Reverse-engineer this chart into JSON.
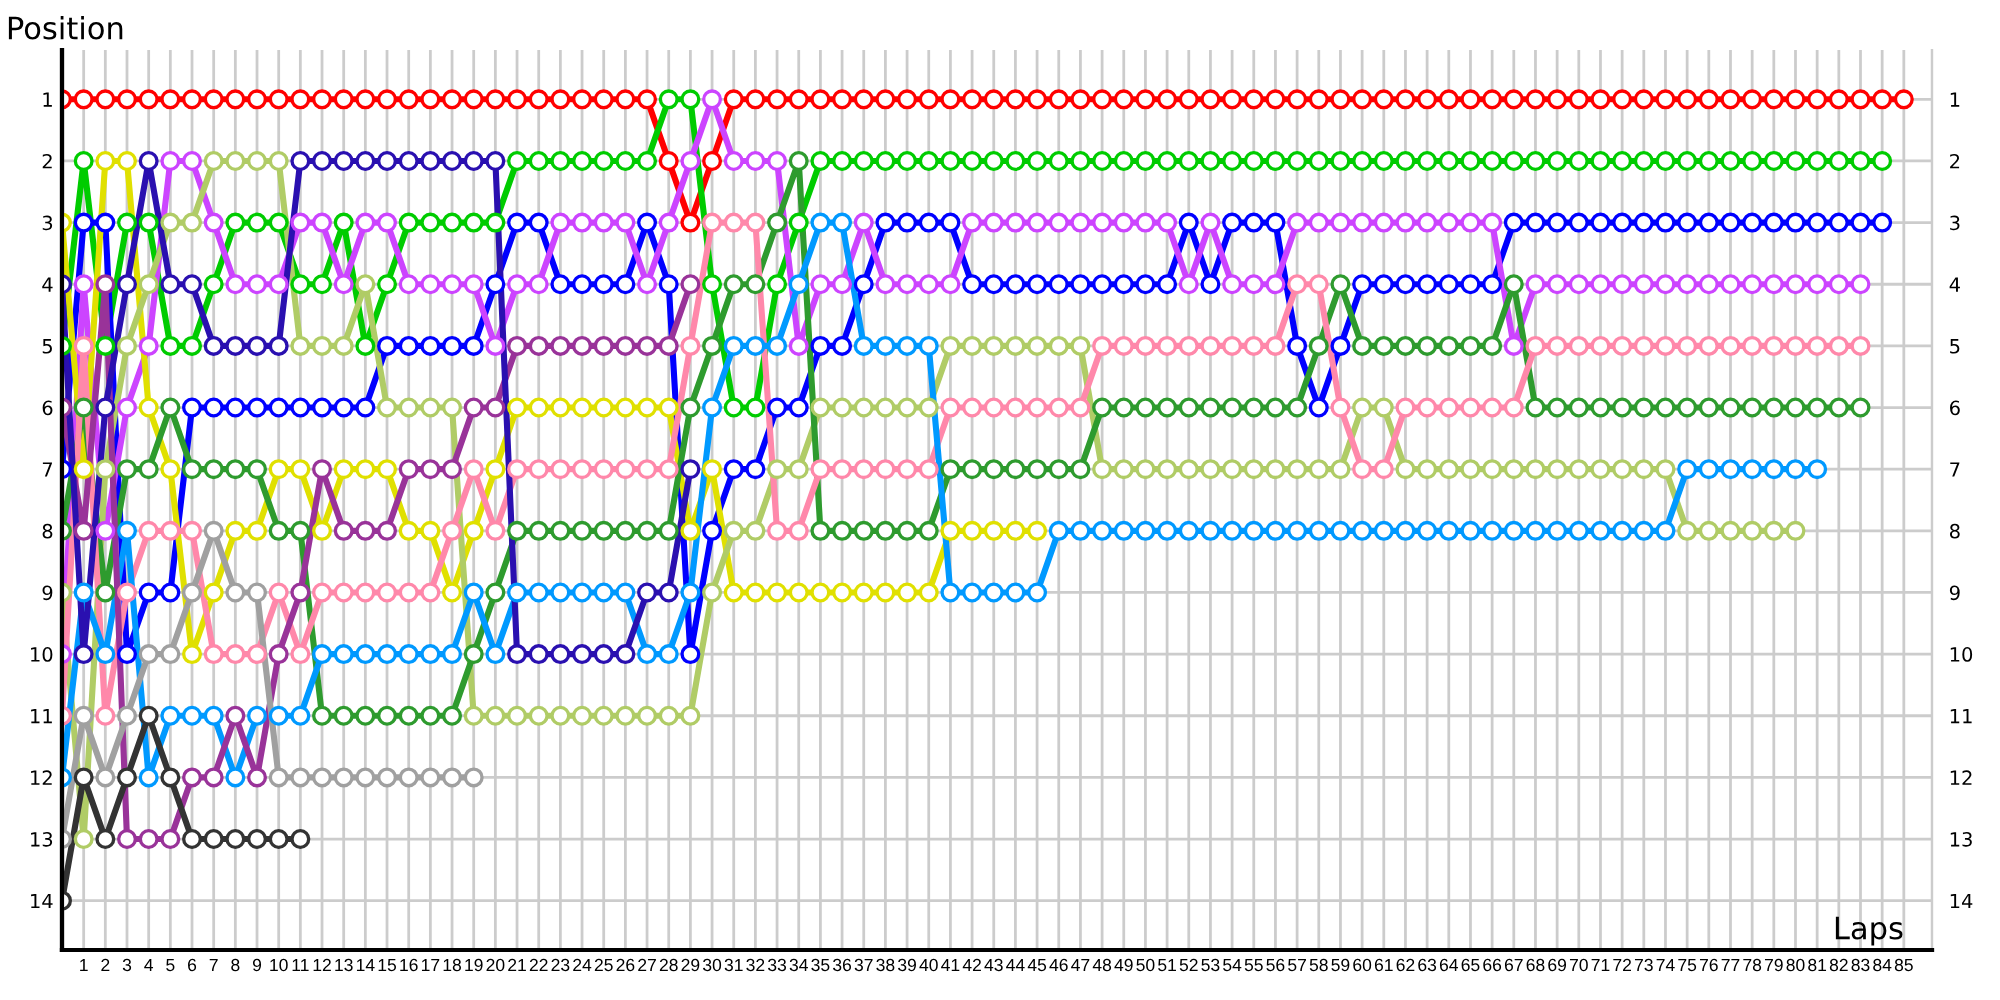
{
  "chart_data": {
    "type": "line",
    "ylabel": "Position",
    "xlabel": "Laps",
    "categories": [
      null,
      "1",
      "2",
      "3",
      "4",
      "5",
      "6",
      "7",
      "8",
      "9",
      "10",
      "11",
      "12",
      "13",
      "14",
      "15",
      "16",
      "17",
      "18",
      "19",
      "20",
      "21",
      "22",
      "23",
      "24",
      "25",
      "26",
      "27",
      "28",
      "29",
      "30",
      "31",
      "32",
      "33",
      "34",
      "35",
      "36",
      "37",
      "38",
      "39",
      "40",
      "41",
      "42",
      "43",
      "44",
      "45",
      "46",
      "47",
      "48",
      "49",
      "50",
      "51",
      "52",
      "53",
      "54",
      "55",
      "56",
      "57",
      "58",
      "59",
      "60",
      "61",
      "62",
      "63",
      "64",
      "65",
      "66",
      "67",
      "68",
      "69",
      "70",
      "71",
      "72",
      "73",
      "74",
      "75",
      "76",
      "77",
      "78",
      "79",
      "80",
      "81",
      "82",
      "83",
      "84",
      "85"
    ],
    "ylim": [
      14.8,
      0.2
    ],
    "yticks": [
      1,
      2,
      3,
      4,
      5,
      6,
      7,
      8,
      9,
      10,
      11,
      12,
      13,
      14
    ],
    "y2lim": [
      14.8,
      0.2
    ],
    "y2ticks": [
      1,
      2,
      3,
      4,
      5,
      6,
      7,
      8,
      9,
      10,
      11,
      12,
      13,
      14
    ],
    "grid": true,
    "marker": "circle",
    "line_style": "solid",
    "series": [
      {
        "color": "#ff0000",
        "values": [
          1,
          1,
          1,
          1,
          1,
          1,
          1,
          1,
          1,
          1,
          1,
          1,
          1,
          1,
          1,
          1,
          1,
          1,
          1,
          1,
          1,
          1,
          1,
          1,
          1,
          1,
          1,
          1,
          2,
          3,
          2,
          1,
          1,
          1,
          1,
          1,
          1,
          1,
          1,
          1,
          1,
          1,
          1,
          1,
          1,
          1,
          1,
          1,
          1,
          1,
          1,
          1,
          1,
          1,
          1,
          1,
          1,
          1,
          1,
          1,
          1,
          1,
          1,
          1,
          1,
          1,
          1,
          1,
          1,
          1,
          1,
          1,
          1,
          1,
          1,
          1,
          1,
          1,
          1,
          1,
          1,
          1,
          1,
          1,
          1,
          1
        ]
      },
      {
        "color": "#00cc00",
        "values": [
          5,
          2,
          5,
          3,
          3,
          5,
          5,
          4,
          3,
          3,
          3,
          4,
          4,
          3,
          5,
          4,
          3,
          3,
          3,
          3,
          3,
          2,
          2,
          2,
          2,
          2,
          2,
          2,
          1,
          1,
          4,
          6,
          6,
          4,
          3,
          2,
          2,
          2,
          2,
          2,
          2,
          2,
          2,
          2,
          2,
          2,
          2,
          2,
          2,
          2,
          2,
          2,
          2,
          2,
          2,
          2,
          2,
          2,
          2,
          2,
          2,
          2,
          2,
          2,
          2,
          2,
          2,
          2,
          2,
          2,
          2,
          2,
          2,
          2,
          2,
          2,
          2,
          2,
          2,
          2,
          2,
          2,
          2,
          2,
          2,
          null
        ]
      },
      {
        "color": "#0000ff",
        "values": [
          7,
          3,
          3,
          10,
          9,
          9,
          6,
          6,
          6,
          6,
          6,
          6,
          6,
          6,
          6,
          5,
          5,
          5,
          5,
          5,
          4,
          3,
          3,
          4,
          4,
          4,
          4,
          3,
          4,
          10,
          8,
          7,
          7,
          6,
          6,
          5,
          5,
          4,
          3,
          3,
          3,
          3,
          4,
          4,
          4,
          4,
          4,
          4,
          4,
          4,
          4,
          4,
          3,
          4,
          3,
          3,
          3,
          5,
          6,
          5,
          4,
          4,
          4,
          4,
          4,
          4,
          4,
          3,
          3,
          3,
          3,
          3,
          3,
          3,
          3,
          3,
          3,
          3,
          3,
          3,
          3,
          3,
          3,
          3,
          3,
          null
        ]
      },
      {
        "color": "#cc44ff",
        "values": [
          10,
          4,
          8,
          6,
          5,
          2,
          2,
          3,
          4,
          4,
          4,
          3,
          3,
          4,
          3,
          3,
          4,
          4,
          4,
          4,
          5,
          4,
          4,
          3,
          3,
          3,
          3,
          4,
          3,
          2,
          1,
          2,
          2,
          2,
          5,
          4,
          4,
          3,
          4,
          4,
          4,
          4,
          3,
          3,
          3,
          3,
          3,
          3,
          3,
          3,
          3,
          3,
          4,
          3,
          4,
          4,
          4,
          3,
          3,
          3,
          3,
          3,
          3,
          3,
          3,
          3,
          3,
          5,
          4,
          4,
          4,
          4,
          4,
          4,
          4,
          4,
          4,
          4,
          4,
          4,
          4,
          4,
          4,
          4,
          null,
          null
        ]
      },
      {
        "color": "#e0e000",
        "values": [
          3,
          7,
          2,
          2,
          6,
          7,
          10,
          9,
          8,
          8,
          7,
          7,
          8,
          7,
          7,
          7,
          8,
          8,
          9,
          8,
          7,
          6,
          6,
          6,
          6,
          6,
          6,
          6,
          6,
          8,
          7,
          9,
          9,
          9,
          9,
          9,
          9,
          9,
          9,
          9,
          9,
          8,
          8,
          8,
          8,
          8,
          null,
          null,
          null,
          null,
          null,
          null,
          null,
          null,
          null,
          null,
          null,
          null,
          null,
          null,
          null,
          null,
          null,
          null,
          null,
          null,
          null,
          null,
          null,
          null,
          null,
          null,
          null,
          null,
          null,
          null,
          null,
          null,
          null,
          null,
          null,
          null,
          null,
          null,
          null,
          null
        ]
      },
      {
        "color": "#b0cc66",
        "values": [
          9,
          13,
          7,
          5,
          4,
          3,
          3,
          2,
          2,
          2,
          2,
          5,
          5,
          5,
          4,
          6,
          6,
          6,
          6,
          11,
          11,
          11,
          11,
          11,
          11,
          11,
          11,
          11,
          11,
          11,
          9,
          8,
          8,
          7,
          7,
          6,
          6,
          6,
          6,
          6,
          6,
          5,
          5,
          5,
          5,
          5,
          5,
          5,
          7,
          7,
          7,
          7,
          7,
          7,
          7,
          7,
          7,
          7,
          7,
          7,
          6,
          6,
          7,
          7,
          7,
          7,
          7,
          7,
          7,
          7,
          7,
          7,
          7,
          7,
          7,
          8,
          8,
          8,
          8,
          8,
          8,
          null,
          null,
          null,
          null,
          null
        ]
      },
      {
        "color": "#2e9b2e",
        "values": [
          8,
          6,
          9,
          7,
          7,
          6,
          7,
          7,
          7,
          7,
          8,
          8,
          11,
          11,
          11,
          11,
          11,
          11,
          11,
          10,
          9,
          8,
          8,
          8,
          8,
          8,
          8,
          8,
          8,
          6,
          5,
          4,
          4,
          3,
          2,
          8,
          8,
          8,
          8,
          8,
          8,
          7,
          7,
          7,
          7,
          7,
          7,
          7,
          6,
          6,
          6,
          6,
          6,
          6,
          6,
          6,
          6,
          6,
          5,
          4,
          5,
          5,
          5,
          5,
          5,
          5,
          5,
          4,
          6,
          6,
          6,
          6,
          6,
          6,
          6,
          6,
          6,
          6,
          6,
          6,
          6,
          6,
          6,
          6,
          null,
          null
        ]
      },
      {
        "color": "#ff88aa",
        "values": [
          11,
          5,
          11,
          9,
          8,
          8,
          8,
          10,
          10,
          10,
          9,
          10,
          9,
          9,
          9,
          9,
          9,
          9,
          8,
          7,
          8,
          7,
          7,
          7,
          7,
          7,
          7,
          7,
          7,
          5,
          3,
          3,
          3,
          8,
          8,
          7,
          7,
          7,
          7,
          7,
          7,
          6,
          6,
          6,
          6,
          6,
          6,
          6,
          5,
          5,
          5,
          5,
          5,
          5,
          5,
          5,
          5,
          4,
          4,
          6,
          7,
          7,
          6,
          6,
          6,
          6,
          6,
          6,
          5,
          5,
          5,
          5,
          5,
          5,
          5,
          5,
          5,
          5,
          5,
          5,
          5,
          5,
          5,
          5,
          null,
          null
        ]
      },
      {
        "color": "#0099ff",
        "values": [
          12,
          9,
          10,
          8,
          12,
          11,
          11,
          11,
          12,
          11,
          11,
          11,
          10,
          10,
          10,
          10,
          10,
          10,
          10,
          9,
          10,
          9,
          9,
          9,
          9,
          9,
          9,
          10,
          10,
          9,
          6,
          5,
          5,
          5,
          4,
          3,
          3,
          5,
          5,
          5,
          5,
          9,
          9,
          9,
          9,
          9,
          8,
          8,
          8,
          8,
          8,
          8,
          8,
          8,
          8,
          8,
          8,
          8,
          8,
          8,
          8,
          8,
          8,
          8,
          8,
          8,
          8,
          8,
          8,
          8,
          8,
          8,
          8,
          8,
          8,
          7,
          7,
          7,
          7,
          7,
          7,
          7,
          null,
          null,
          null,
          null
        ]
      },
      {
        "color": "#993399",
        "values": [
          6,
          8,
          4,
          13,
          13,
          13,
          12,
          12,
          11,
          12,
          10,
          9,
          7,
          8,
          8,
          8,
          7,
          7,
          7,
          6,
          6,
          5,
          5,
          5,
          5,
          5,
          5,
          5,
          5,
          4,
          null,
          null,
          null,
          null,
          null,
          null,
          null,
          null,
          null,
          null,
          null,
          null,
          null,
          null,
          null,
          null,
          null,
          null,
          null,
          null,
          null,
          null,
          null,
          null,
          null,
          null,
          null,
          null,
          null,
          null,
          null,
          null,
          null,
          null,
          null,
          null,
          null,
          null,
          null,
          null,
          null,
          null,
          null,
          null,
          null,
          null,
          null,
          null,
          null,
          null,
          null,
          null,
          null,
          null,
          null,
          null
        ]
      },
      {
        "color": "#2a10b0",
        "values": [
          4,
          10,
          6,
          4,
          2,
          4,
          4,
          5,
          5,
          5,
          5,
          2,
          2,
          2,
          2,
          2,
          2,
          2,
          2,
          2,
          2,
          10,
          10,
          10,
          10,
          10,
          10,
          9,
          9,
          7,
          null,
          null,
          null,
          null,
          null,
          null,
          null,
          null,
          null,
          null,
          null,
          null,
          null,
          null,
          null,
          null,
          null,
          null,
          null,
          null,
          null,
          null,
          null,
          null,
          null,
          null,
          null,
          null,
          null,
          null,
          null,
          null,
          null,
          null,
          null,
          null,
          null,
          null,
          null,
          null,
          null,
          null,
          null,
          null,
          null,
          null,
          null,
          null,
          null,
          null,
          null,
          null,
          null,
          null,
          null,
          null
        ]
      },
      {
        "color": "#a0a0a0",
        "values": [
          13,
          11,
          12,
          11,
          10,
          10,
          9,
          8,
          9,
          9,
          12,
          12,
          12,
          12,
          12,
          12,
          12,
          12,
          12,
          12,
          null,
          null,
          null,
          null,
          null,
          null,
          null,
          null,
          null,
          null,
          null,
          null,
          null,
          null,
          null,
          null,
          null,
          null,
          null,
          null,
          null,
          null,
          null,
          null,
          null,
          null,
          null,
          null,
          null,
          null,
          null,
          null,
          null,
          null,
          null,
          null,
          null,
          null,
          null,
          null,
          null,
          null,
          null,
          null,
          null,
          null,
          null,
          null,
          null,
          null,
          null,
          null,
          null,
          null,
          null,
          null,
          null,
          null,
          null,
          null,
          null,
          null,
          null,
          null,
          null,
          null
        ]
      },
      {
        "color": "#333333",
        "values": [
          14,
          12,
          13,
          12,
          11,
          12,
          13,
          13,
          13,
          13,
          13,
          13,
          null,
          null,
          null,
          null,
          null,
          null,
          null,
          null,
          null,
          null,
          null,
          null,
          null,
          null,
          null,
          null,
          null,
          null,
          null,
          null,
          null,
          null,
          null,
          null,
          null,
          null,
          null,
          null,
          null,
          null,
          null,
          null,
          null,
          null,
          null,
          null,
          null,
          null,
          null,
          null,
          null,
          null,
          null,
          null,
          null,
          null,
          null,
          null,
          null,
          null,
          null,
          null,
          null,
          null,
          null,
          null,
          null,
          null,
          null,
          null,
          null,
          null,
          null,
          null,
          null,
          null,
          null,
          null,
          null,
          null,
          null,
          null,
          null,
          null
        ]
      }
    ]
  }
}
